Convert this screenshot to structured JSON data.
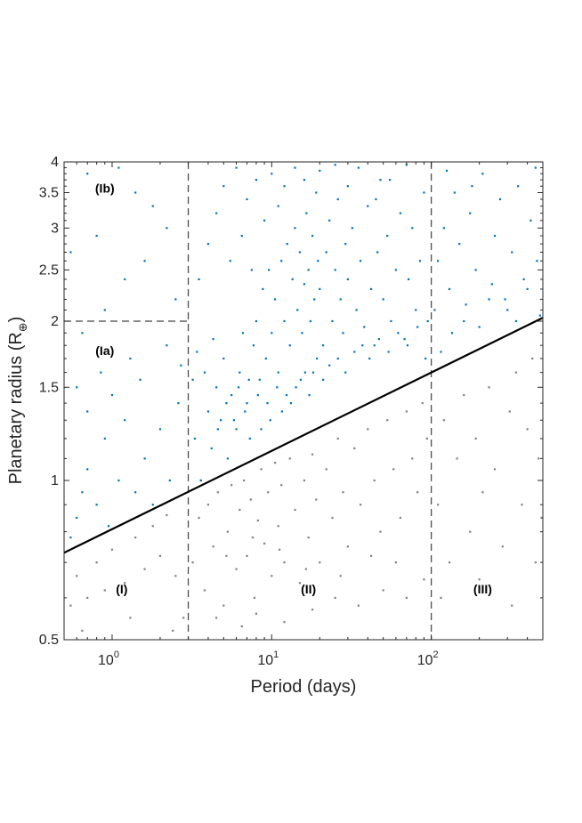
{
  "chart_data": {
    "type": "scatter",
    "xlabel": "Period (days)",
    "ylabel": "Planetary radius (R",
    "ylabel_subscript": "⊕",
    "ylabel_close": ")",
    "x_scale": "log",
    "y_scale": "log",
    "xlim": [
      0.5,
      500
    ],
    "ylim": [
      0.5,
      4
    ],
    "x_ticks": [
      {
        "value": 1,
        "base": "10",
        "exp": "0"
      },
      {
        "value": 10,
        "base": "10",
        "exp": "1"
      },
      {
        "value": 100,
        "base": "10",
        "exp": "2"
      }
    ],
    "y_ticks": [
      {
        "value": 0.5,
        "label": "0.5"
      },
      {
        "value": 1,
        "label": "1"
      },
      {
        "value": 1.5,
        "label": "1.5"
      },
      {
        "value": 2,
        "label": "2"
      },
      {
        "value": 2.5,
        "label": "2.5"
      },
      {
        "value": 3,
        "label": "3"
      },
      {
        "value": 3.5,
        "label": "3.5"
      },
      {
        "value": 4,
        "label": "4"
      }
    ],
    "grid": false,
    "colors": {
      "above": "#0072BD",
      "below": "#808080",
      "line": "#000000",
      "dashed": "#404040"
    },
    "boundary_line": {
      "x": [
        0.5,
        500
      ],
      "y": [
        0.73,
        2.03
      ]
    },
    "vertical_dividers": [
      3,
      100
    ],
    "horizontal_divider": {
      "y": 2,
      "x": [
        0.5,
        3
      ]
    },
    "regions": [
      {
        "label": "(Ib)",
        "x": 0.9,
        "y": 3.55
      },
      {
        "label": "(Ia)",
        "x": 0.9,
        "y": 1.75
      },
      {
        "label": "(I)",
        "x": 1.15,
        "y": 0.62
      },
      {
        "label": "(II)",
        "x": 17,
        "y": 0.62
      },
      {
        "label": "(III)",
        "x": 210,
        "y": 0.62
      }
    ],
    "series": [
      {
        "color": "#0072BD",
        "points": [
          [
            0.55,
            0.78
          ],
          [
            0.6,
            0.85
          ],
          [
            0.65,
            0.95
          ],
          [
            0.7,
            1.05
          ],
          [
            0.8,
            0.9
          ],
          [
            0.9,
            1.2
          ],
          [
            0.95,
            0.82
          ],
          [
            1.1,
            1.0
          ],
          [
            1.2,
            1.3
          ],
          [
            1.4,
            0.95
          ],
          [
            1.6,
            1.1
          ],
          [
            1.8,
            0.9
          ],
          [
            2.0,
            1.25
          ],
          [
            2.3,
            1.0
          ],
          [
            2.6,
            1.4
          ],
          [
            0.6,
            1.5
          ],
          [
            0.7,
            1.35
          ],
          [
            0.85,
            1.6
          ],
          [
            1.0,
            1.45
          ],
          [
            1.3,
            1.7
          ],
          [
            1.5,
            1.55
          ],
          [
            2.2,
            1.8
          ],
          [
            2.7,
            1.65
          ],
          [
            0.65,
            1.9
          ],
          [
            0.9,
            2.1
          ],
          [
            1.2,
            2.4
          ],
          [
            1.6,
            2.6
          ],
          [
            2.2,
            3.0
          ],
          [
            0.7,
            3.8
          ],
          [
            1.1,
            3.9
          ],
          [
            1.8,
            3.3
          ],
          [
            2.5,
            2.2
          ],
          [
            0.55,
            2.7
          ],
          [
            0.8,
            2.9
          ],
          [
            1.4,
            3.5
          ],
          [
            3.3,
            1.2
          ],
          [
            3.6,
            1.0
          ],
          [
            4.0,
            1.35
          ],
          [
            4.2,
            1.15
          ],
          [
            4.5,
            1.5
          ],
          [
            4.8,
            1.3
          ],
          [
            5.0,
            1.7
          ],
          [
            5.3,
            1.1
          ],
          [
            5.6,
            1.45
          ],
          [
            6.0,
            1.25
          ],
          [
            6.3,
            1.6
          ],
          [
            6.6,
            1.9
          ],
          [
            7.0,
            1.4
          ],
          [
            7.3,
            1.2
          ],
          [
            7.7,
            1.8
          ],
          [
            8.0,
            2.0
          ],
          [
            8.4,
            1.55
          ],
          [
            8.8,
            2.3
          ],
          [
            9.2,
            1.7
          ],
          [
            9.6,
            2.5
          ],
          [
            10,
            1.9
          ],
          [
            10.5,
            2.2
          ],
          [
            11,
            1.6
          ],
          [
            11.5,
            2.6
          ],
          [
            12,
            2.0
          ],
          [
            12.5,
            2.8
          ],
          [
            13,
            1.8
          ],
          [
            13.5,
            2.4
          ],
          [
            14,
            3.0
          ],
          [
            14.5,
            2.1
          ],
          [
            15,
            2.7
          ],
          [
            15.5,
            1.9
          ],
          [
            16,
            2.35
          ],
          [
            16.5,
            3.2
          ],
          [
            17,
            2.5
          ],
          [
            17.5,
            2.0
          ],
          [
            18,
            2.9
          ],
          [
            18.5,
            2.2
          ],
          [
            19,
            3.5
          ],
          [
            19.5,
            2.6
          ],
          [
            20,
            2.3
          ],
          [
            21,
            1.8
          ],
          [
            22,
            2.7
          ],
          [
            23,
            3.1
          ],
          [
            24,
            2.0
          ],
          [
            25,
            2.5
          ],
          [
            26,
            3.4
          ],
          [
            27,
            2.2
          ],
          [
            28,
            1.9
          ],
          [
            29,
            2.8
          ],
          [
            30,
            2.4
          ],
          [
            32,
            3.0
          ],
          [
            34,
            2.1
          ],
          [
            36,
            2.6
          ],
          [
            38,
            1.95
          ],
          [
            40,
            3.3
          ],
          [
            42,
            2.3
          ],
          [
            44,
            1.8
          ],
          [
            46,
            2.7
          ],
          [
            48,
            3.7
          ],
          [
            50,
            2.2
          ],
          [
            53,
            2.9
          ],
          [
            56,
            2.0
          ],
          [
            60,
            2.5
          ],
          [
            64,
            3.2
          ],
          [
            68,
            1.85
          ],
          [
            72,
            2.4
          ],
          [
            76,
            3.0
          ],
          [
            80,
            2.1
          ],
          [
            85,
            2.6
          ],
          [
            90,
            3.5
          ],
          [
            95,
            2.0
          ],
          [
            3.5,
            2.4
          ],
          [
            4.0,
            2.8
          ],
          [
            4.5,
            3.2
          ],
          [
            5.0,
            3.6
          ],
          [
            5.5,
            2.6
          ],
          [
            6,
            3.9
          ],
          [
            6.5,
            2.9
          ],
          [
            7,
            3.4
          ],
          [
            7.5,
            2.5
          ],
          [
            8,
            3.7
          ],
          [
            9,
            3.1
          ],
          [
            10,
            3.8
          ],
          [
            11,
            3.3
          ],
          [
            12,
            3.6
          ],
          [
            14,
            3.9
          ],
          [
            16,
            3.7
          ],
          [
            20,
            3.85
          ],
          [
            25,
            3.95
          ],
          [
            30,
            3.6
          ],
          [
            35,
            3.9
          ],
          [
            45,
            3.4
          ],
          [
            55,
            3.7
          ],
          [
            70,
            3.95
          ],
          [
            3.2,
            1.55
          ],
          [
            3.4,
            1.75
          ],
          [
            3.8,
            1.6
          ],
          [
            4.3,
            1.85
          ],
          [
            4.6,
            1.25
          ],
          [
            5.2,
            1.4
          ],
          [
            5.8,
            1.3
          ],
          [
            6.2,
            1.5
          ],
          [
            6.8,
            1.35
          ],
          [
            7.2,
            1.55
          ],
          [
            8.2,
            1.45
          ],
          [
            8.6,
            1.25
          ],
          [
            9.4,
            1.4
          ],
          [
            9.8,
            1.3
          ],
          [
            10.8,
            1.5
          ],
          [
            11.6,
            1.35
          ],
          [
            12.4,
            1.45
          ],
          [
            13.2,
            1.4
          ],
          [
            14.2,
            1.5
          ],
          [
            15.2,
            1.55
          ],
          [
            16.2,
            1.6
          ],
          [
            17.2,
            1.45
          ],
          [
            18.2,
            1.6
          ],
          [
            19.2,
            1.7
          ],
          [
            21,
            1.55
          ],
          [
            23,
            1.65
          ],
          [
            26,
            1.7
          ],
          [
            29,
            1.6
          ],
          [
            33,
            1.75
          ],
          [
            37,
            1.8
          ],
          [
            41,
            1.7
          ],
          [
            47,
            1.85
          ],
          [
            54,
            1.75
          ],
          [
            62,
            1.9
          ],
          [
            71,
            1.8
          ],
          [
            82,
            1.95
          ],
          [
            92,
            1.7
          ],
          [
            105,
            2.1
          ],
          [
            110,
            2.6
          ],
          [
            120,
            3.0
          ],
          [
            130,
            2.3
          ],
          [
            140,
            3.5
          ],
          [
            150,
            2.8
          ],
          [
            160,
            2.0
          ],
          [
            175,
            3.2
          ],
          [
            190,
            2.5
          ],
          [
            210,
            3.8
          ],
          [
            230,
            2.2
          ],
          [
            250,
            2.9
          ],
          [
            270,
            3.4
          ],
          [
            300,
            2.1
          ],
          [
            320,
            2.7
          ],
          [
            350,
            3.6
          ],
          [
            380,
            2.4
          ],
          [
            420,
            3.1
          ],
          [
            460,
            2.6
          ],
          [
            480,
            2.05
          ],
          [
            115,
            1.75
          ],
          [
            135,
            1.9
          ],
          [
            165,
            2.15
          ],
          [
            200,
            1.95
          ],
          [
            240,
            2.35
          ],
          [
            290,
            2.2
          ],
          [
            340,
            2.0
          ],
          [
            400,
            2.3
          ],
          [
            450,
            3.9
          ],
          [
            125,
            3.85
          ],
          [
            180,
            3.6
          ]
        ]
      },
      {
        "color": "#808080",
        "points": [
          [
            0.55,
            0.58
          ],
          [
            0.6,
            0.66
          ],
          [
            0.7,
            0.6
          ],
          [
            0.8,
            0.7
          ],
          [
            0.9,
            0.62
          ],
          [
            1.0,
            0.74
          ],
          [
            1.2,
            0.64
          ],
          [
            1.4,
            0.78
          ],
          [
            1.6,
            0.68
          ],
          [
            1.8,
            0.82
          ],
          [
            2.0,
            0.72
          ],
          [
            2.2,
            0.86
          ],
          [
            2.5,
            0.66
          ],
          [
            2.8,
            0.55
          ],
          [
            1.3,
            0.55
          ],
          [
            0.65,
            0.52
          ],
          [
            2.4,
            0.52
          ],
          [
            3.2,
            0.7
          ],
          [
            3.5,
            0.85
          ],
          [
            3.8,
            0.62
          ],
          [
            4.0,
            0.9
          ],
          [
            4.3,
            0.75
          ],
          [
            4.6,
            0.95
          ],
          [
            5.0,
            0.58
          ],
          [
            5.3,
            0.8
          ],
          [
            5.6,
            0.98
          ],
          [
            6.0,
            0.68
          ],
          [
            6.3,
            0.88
          ],
          [
            6.7,
            1.0
          ],
          [
            7.0,
            0.72
          ],
          [
            7.4,
            0.92
          ],
          [
            7.8,
            0.6
          ],
          [
            8.2,
            0.84
          ],
          [
            8.6,
            1.05
          ],
          [
            9.0,
            0.76
          ],
          [
            9.5,
            0.95
          ],
          [
            10,
            0.66
          ],
          [
            10.5,
            1.08
          ],
          [
            11,
            0.82
          ],
          [
            11.5,
            0.98
          ],
          [
            12,
            0.7
          ],
          [
            13,
            1.1
          ],
          [
            14,
            0.88
          ],
          [
            15,
            0.64
          ],
          [
            16,
            1.0
          ],
          [
            17,
            0.78
          ],
          [
            18,
            1.12
          ],
          [
            19,
            0.92
          ],
          [
            20,
            0.7
          ],
          [
            22,
            1.05
          ],
          [
            24,
            0.85
          ],
          [
            26,
            1.2
          ],
          [
            28,
            0.95
          ],
          [
            30,
            0.75
          ],
          [
            33,
            1.15
          ],
          [
            36,
            0.9
          ],
          [
            40,
            1.25
          ],
          [
            44,
            1.0
          ],
          [
            48,
            0.8
          ],
          [
            53,
            1.3
          ],
          [
            58,
            1.05
          ],
          [
            64,
            0.85
          ],
          [
            70,
            1.35
          ],
          [
            76,
            1.1
          ],
          [
            82,
            0.95
          ],
          [
            88,
            1.4
          ],
          [
            94,
            1.2
          ],
          [
            4.5,
            0.55
          ],
          [
            6.5,
            0.53
          ],
          [
            8,
            0.56
          ],
          [
            12,
            0.54
          ],
          [
            18,
            0.57
          ],
          [
            25,
            0.6
          ],
          [
            35,
            0.58
          ],
          [
            50,
            0.62
          ],
          [
            70,
            0.6
          ],
          [
            90,
            0.65
          ],
          [
            3.6,
            1.0
          ],
          [
            5.2,
            0.72
          ],
          [
            7.6,
            0.78
          ],
          [
            11.2,
            0.74
          ],
          [
            16.4,
            0.68
          ],
          [
            27,
            0.66
          ],
          [
            42,
            0.72
          ],
          [
            60,
            0.7
          ],
          [
            110,
            0.9
          ],
          [
            120,
            1.3
          ],
          [
            130,
            0.7
          ],
          [
            145,
            1.1
          ],
          [
            160,
            1.45
          ],
          [
            175,
            0.8
          ],
          [
            190,
            1.2
          ],
          [
            210,
            0.95
          ],
          [
            230,
            1.5
          ],
          [
            250,
            1.05
          ],
          [
            280,
            0.75
          ],
          [
            310,
            1.35
          ],
          [
            340,
            1.6
          ],
          [
            370,
            0.9
          ],
          [
            400,
            1.25
          ],
          [
            430,
            1.7
          ],
          [
            470,
            1.1
          ],
          [
            490,
            0.85
          ],
          [
            115,
            0.6
          ],
          [
            200,
            0.65
          ],
          [
            320,
            0.58
          ],
          [
            450,
            0.7
          ]
        ]
      }
    ]
  }
}
